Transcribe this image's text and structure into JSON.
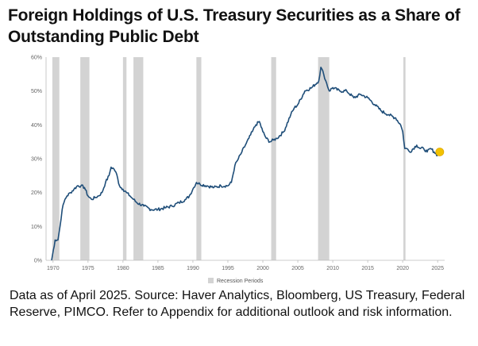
{
  "title": "Foreign Holdings of U.S. Treasury Securities as a Share of Outstanding Public Debt",
  "caption": "Data as of April 2025. Source: Haver Analytics, Bloomberg, US Treasury, Federal Reserve, PIMCO. Refer to Appendix for additional outlook and risk information.",
  "colors": {
    "line": "#1f4e79",
    "recession": "#d3d3d3",
    "endpoint": "#f2c200"
  },
  "chart_data": {
    "type": "line",
    "title": "",
    "xlabel": "",
    "ylabel": "",
    "xlim": [
      1969,
      2026
    ],
    "ylim": [
      0,
      60
    ],
    "yticks": [
      0,
      10,
      20,
      30,
      40,
      50,
      60
    ],
    "ytick_labels": [
      "0%",
      "10%",
      "20%",
      "30%",
      "40%",
      "50%",
      "60%"
    ],
    "xticks": [
      1970,
      1975,
      1980,
      1985,
      1990,
      1995,
      2000,
      2005,
      2010,
      2015,
      2020,
      2025
    ],
    "xtick_labels": [
      "1970",
      "1975",
      "1980",
      "1985",
      "1990",
      "1995",
      "2000",
      "2005",
      "2010",
      "2015",
      "2020",
      "2025"
    ],
    "grid": false,
    "legend": {
      "label": "Recession Periods",
      "position": "bottom-center"
    },
    "recessions": [
      {
        "start": 1969.9,
        "end": 1970.9
      },
      {
        "start": 1973.9,
        "end": 1975.2
      },
      {
        "start": 1980.0,
        "end": 1980.5
      },
      {
        "start": 1981.5,
        "end": 1982.9
      },
      {
        "start": 1990.5,
        "end": 1991.2
      },
      {
        "start": 2001.2,
        "end": 2001.9
      },
      {
        "start": 2007.9,
        "end": 2009.5
      },
      {
        "start": 2020.1,
        "end": 2020.4
      }
    ],
    "series": [
      {
        "x": [
          1969.8,
          1970.3,
          1970.7,
          1971.0,
          1971.3,
          1971.7,
          1972.0,
          1972.5,
          1973.0,
          1973.5,
          1974.0,
          1974.5,
          1975.0,
          1975.5,
          1976.0,
          1976.5,
          1977.0,
          1977.5,
          1978.0,
          1978.3,
          1978.7,
          1979.0,
          1979.5,
          1980.0,
          1980.5,
          1981.0,
          1981.5,
          1982.0,
          1983.0,
          1984.0,
          1985.0,
          1986.0,
          1987.0,
          1988.0,
          1989.0,
          1989.5,
          1990.0,
          1990.5,
          1991.0,
          1992.0,
          1993.0,
          1994.0,
          1995.0,
          1995.5,
          1996.0,
          1996.5,
          1997.0,
          1997.5,
          1998.0,
          1998.5,
          1999.0,
          1999.5,
          2000.0,
          2000.5,
          2001.0,
          2001.5,
          2002.0,
          2003.0,
          2004.0,
          2004.5,
          2005.0,
          2006.0,
          2007.0,
          2008.0,
          2008.3,
          2008.7,
          2009.0,
          2009.5,
          2010.0,
          2011.0,
          2012.0,
          2013.0,
          2014.0,
          2015.0,
          2016.0,
          2017.0,
          2018.0,
          2019.0,
          2019.7,
          2020.0,
          2020.3,
          2020.6,
          2021.0,
          2022.0,
          2022.5,
          2023.0,
          2023.5,
          2024.0,
          2024.5,
          2025.0,
          2025.3
        ],
        "y": [
          0,
          6,
          6,
          10,
          15,
          18,
          19,
          20,
          21,
          22,
          22,
          21.5,
          19,
          18,
          18.5,
          19,
          20,
          23,
          25,
          27.5,
          27,
          26,
          22,
          21,
          20,
          19,
          18,
          17,
          16,
          15,
          15,
          15.5,
          16,
          17,
          18,
          19,
          21,
          23,
          22.5,
          22,
          21.5,
          22,
          22,
          23,
          28,
          30,
          32,
          34,
          36,
          38,
          40,
          41,
          38,
          36,
          35,
          35.5,
          36,
          38,
          43,
          45,
          46,
          50,
          51,
          53,
          57,
          55,
          53,
          50,
          51,
          50,
          50,
          48,
          49,
          48,
          46,
          44,
          43,
          42,
          40,
          38,
          33,
          33,
          32,
          34,
          33,
          33,
          32,
          33,
          32,
          31,
          32
        ]
      }
    ]
  }
}
